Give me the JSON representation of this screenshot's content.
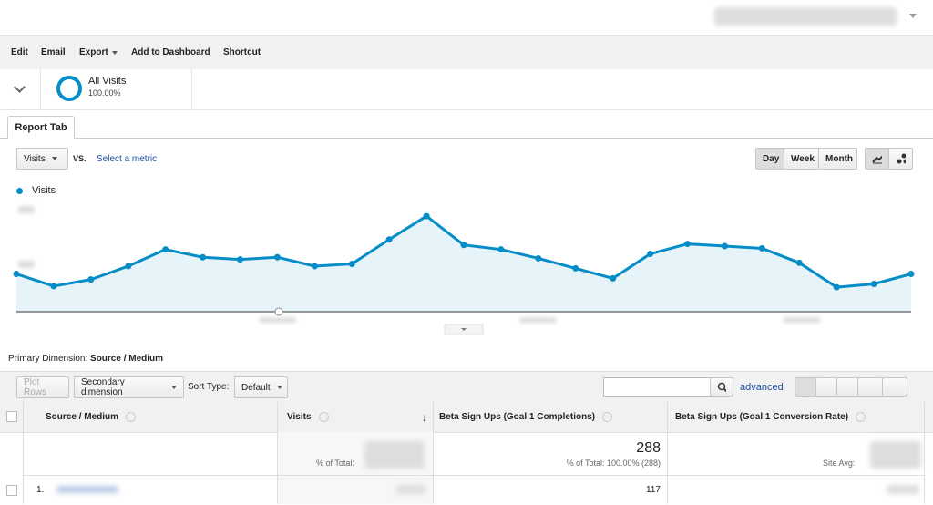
{
  "toolbar": {
    "items": [
      "Edit",
      "Email",
      "Export",
      "Add to Dashboard",
      "Shortcut"
    ]
  },
  "segment": {
    "name": "All Visits",
    "share": "100.00%"
  },
  "tab": "Report Tab",
  "controls": {
    "metric": "Visits",
    "vs": "VS.",
    "select_metric": "Select a metric",
    "periods": [
      "Day",
      "Week",
      "Month"
    ]
  },
  "chart_data": {
    "type": "line",
    "ylim": [
      0,
      100
    ],
    "series": [
      {
        "name": "Visits",
        "color": "#058dc7",
        "values": [
          34,
          23,
          29,
          41,
          56,
          49,
          47,
          49,
          41,
          43,
          65,
          86,
          60,
          56,
          48,
          39,
          30,
          52,
          61,
          59,
          57,
          44,
          22,
          25,
          34
        ]
      }
    ]
  },
  "dimension": {
    "label": "Primary Dimension:",
    "value": "Source / Medium"
  },
  "table_controls": {
    "plot_rows": "Plot Rows",
    "secondary": "Secondary dimension",
    "sort_label": "Sort Type:",
    "sort_value": "Default",
    "advanced": "advanced"
  },
  "table": {
    "headers": [
      "Source / Medium",
      "Visits",
      "Beta Sign Ups (Goal 1 Completions)",
      "Beta Sign Ups (Goal 1 Conversion Rate)"
    ],
    "totals": {
      "visits_label": "% of Total:",
      "completions": "288",
      "completions_label": "% of Total: 100.00% (288)",
      "rate_label": "Site Avg:"
    },
    "rows": [
      {
        "index": "1.",
        "completions": "117"
      }
    ]
  }
}
